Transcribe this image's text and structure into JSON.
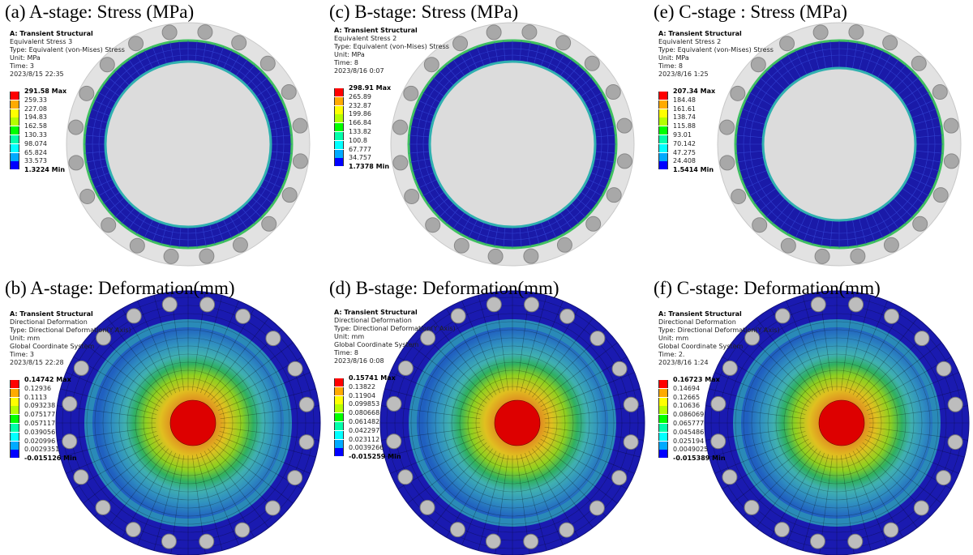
{
  "legend_colors": [
    "#ff0000",
    "#ffaa00",
    "#ffff00",
    "#b4ff00",
    "#00ff00",
    "#00ffaa",
    "#00ffff",
    "#00aaff",
    "#0000ff"
  ],
  "panels": [
    {
      "title": "(a) A-stage: Stress (MPa)",
      "kind": "stress",
      "header": [
        "A: Transient Structural",
        "Equivalent Stress 3",
        "Type: Equivalent (von-Mises) Stress",
        "Unit: MPa",
        "Time: 3",
        "2023/8/15 22:35"
      ],
      "max": "291.58 Max",
      "levels": [
        "259.33",
        "227.08",
        "194.83",
        "162.58",
        "130.33",
        "98.074",
        "65.824",
        "33.573"
      ],
      "min": "1.3224 Min"
    },
    {
      "title": "(c) B-stage: Stress (MPa)",
      "kind": "stress",
      "header": [
        "A: Transient Structural",
        "Equivalent Stress 2",
        "Type: Equivalent (von-Mises) Stress",
        "Unit: MPa",
        "Time: 8",
        "2023/8/16 0:07"
      ],
      "max": "298.91 Max",
      "levels": [
        "265.89",
        "232.87",
        "199.86",
        "166.84",
        "133.82",
        "100.8",
        "67.777",
        "34.757"
      ],
      "min": "1.7378 Min"
    },
    {
      "title": "(e) C-stage : Stress (MPa)",
      "kind": "stress",
      "header": [
        "A: Transient Structural",
        "Equivalent Stress 2",
        "Type: Equivalent (von-Mises) Stress",
        "Unit: MPa",
        "Time: 8",
        "2023/8/16 1:25"
      ],
      "max": "207.34 Max",
      "levels": [
        "184.48",
        "161.61",
        "138.74",
        "115.88",
        "93.01",
        "70.142",
        "47.275",
        "24.408"
      ],
      "min": "1.5414 Min"
    },
    {
      "title": "(b) A-stage: Deformation(mm)",
      "kind": "deform",
      "header": [
        "A: Transient Structural",
        "Directional Deformation",
        "Type: Directional Deformation(Y Axis)",
        "Unit: mm",
        "Global Coordinate System",
        "Time: 3",
        "2023/8/15 22:28"
      ],
      "max": "0.14742 Max",
      "levels": [
        "0.12936",
        "0.1113",
        "0.093238",
        "0.075177",
        "0.057117",
        "0.039056",
        "0.020996",
        "0.0029351"
      ],
      "min": "-0.015126 Min"
    },
    {
      "title": "(d) B-stage: Deformation(mm)",
      "kind": "deform",
      "header": [
        "A: Transient Structural",
        "Directional Deformation",
        "Type: Directional Deformation(Y Axis)",
        "Unit: mm",
        "Global Coordinate System",
        "Time: 8",
        "2023/8/16 0:08"
      ],
      "max": "0.15741 Max",
      "levels": [
        "0.13822",
        "0.11904",
        "0.099853",
        "0.080668",
        "0.061482",
        "0.042297",
        "0.023112",
        "0.0039266"
      ],
      "min": "-0.015259 Min"
    },
    {
      "title": "(f) C-stage: Deformation(mm)",
      "kind": "deform",
      "header": [
        "A: Transient Structural",
        "Directional Deformation",
        "Type: Directional Deformation(Y Axis)",
        "Unit: mm",
        "Global Coordinate System",
        "Time: 2.",
        "2023/8/16 1:24"
      ],
      "max": "0.16723 Max",
      "levels": [
        "0.14694",
        "0.12665",
        "0.10636",
        "0.086069",
        "0.065777",
        "0.045486",
        "0.025194",
        "0.0049025"
      ],
      "min": "-0.015389 Min"
    }
  ]
}
